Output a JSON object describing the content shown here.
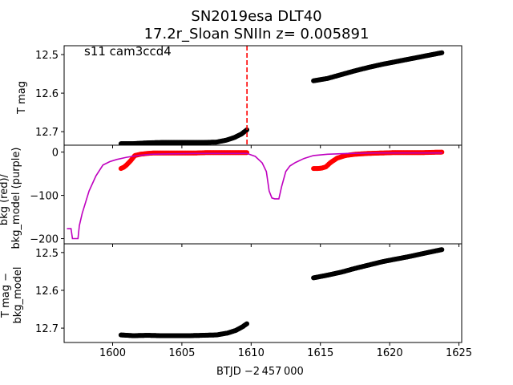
{
  "figure": {
    "title_line1": "SN2019esa  DLT40",
    "title_line2": "17.2r_Sloan SNIIn z= 0.005891",
    "annotation": "s11 cam3ccd4",
    "xlabel": "BTJD −2 457 000"
  },
  "colors": {
    "data": "#000000",
    "bkg": "#ff0000",
    "model": "#bf00bf",
    "marker_line": "#ff0000"
  },
  "chart_data": [
    {
      "type": "scatter",
      "name": "top-panel",
      "ylabel": "T mag",
      "xlim": [
        1596.5,
        1625.2
      ],
      "ylim": [
        12.735,
        12.477
      ],
      "y_inverted": true,
      "xticks": [
        1600,
        1605,
        1610,
        1615,
        1620,
        1625
      ],
      "yticks": [
        12.5,
        12.6,
        12.7
      ],
      "ytick_labels": [
        "12.5",
        "12.6",
        "12.7"
      ],
      "vline_x": 1609.7,
      "series": [
        {
          "color": "black",
          "segments": [
            {
              "x": [
                1600.6,
                1601.5,
                1602.5,
                1603.5,
                1604.5,
                1605.5,
                1606.5,
                1607.5,
                1608.2,
                1608.8,
                1609.3,
                1609.7
              ],
              "y": [
                12.731,
                12.731,
                12.729,
                12.728,
                12.728,
                12.728,
                12.728,
                12.727,
                12.722,
                12.715,
                12.706,
                12.695
              ]
            },
            {
              "x": [
                1614.5,
                1615.5,
                1616.5,
                1617.5,
                1618.5,
                1619.5,
                1620.5,
                1621.5,
                1622.5,
                1623.8
              ],
              "y": [
                12.568,
                12.562,
                12.552,
                12.542,
                12.533,
                12.525,
                12.518,
                12.511,
                12.504,
                12.495
              ]
            }
          ]
        }
      ]
    },
    {
      "type": "line",
      "name": "middle-panel",
      "ylabel": "bkg (red)/ \nbkg_model (purple)",
      "xlim": [
        1596.5,
        1625.2
      ],
      "ylim": [
        -212,
        16
      ],
      "xticks": [
        1600,
        1605,
        1610,
        1615,
        1620,
        1625
      ],
      "yticks": [
        0,
        -100,
        -200
      ],
      "ytick_labels": [
        "0",
        "−100",
        "−200"
      ],
      "series": [
        {
          "name": "bkg",
          "color": "red",
          "segments": [
            {
              "x": [
                1600.6,
                1600.8,
                1601.0,
                1601.3,
                1601.6,
                1602.0,
                1602.5,
                1603.0,
                1604.0,
                1605.0,
                1606.0,
                1607.0,
                1608.0,
                1609.0,
                1609.7
              ],
              "y": [
                -38,
                -35,
                -30,
                -20,
                -8,
                -5,
                -3,
                -2,
                -2,
                -2,
                -2,
                -1,
                -1,
                -1,
                -1
              ]
            },
            {
              "x": [
                1614.5,
                1614.8,
                1615.1,
                1615.4,
                1615.7,
                1616.2,
                1616.8,
                1617.5,
                1618.5,
                1619.5,
                1620.5,
                1621.5,
                1622.5,
                1623.8
              ],
              "y": [
                -38,
                -38,
                -37,
                -34,
                -25,
                -14,
                -8,
                -5,
                -3,
                -2,
                -1,
                -1,
                -1,
                0
              ]
            }
          ]
        },
        {
          "name": "bkg_model",
          "color": "purple",
          "segments": [
            {
              "x": [
                1596.7,
                1597.0,
                1597.1,
                1597.5,
                1597.6,
                1597.8,
                1598.3,
                1598.8,
                1599.3,
                1599.8,
                1600.3,
                1601.0,
                1601.8,
                1602.8,
                1604.0,
                1606.0,
                1608.0,
                1609.7,
                1610.3,
                1610.8,
                1611.1,
                1611.3,
                1611.5,
                1611.7,
                1612.0,
                1612.2,
                1612.5,
                1612.8,
                1613.2,
                1613.8,
                1614.5,
                1615.5,
                1617.0,
                1619.0,
                1621.0,
                1623.8
              ],
              "y": [
                -177,
                -177,
                -200,
                -200,
                -170,
                -142,
                -90,
                -55,
                -30,
                -22,
                -17,
                -12,
                -8,
                -5,
                -4,
                -3,
                -3,
                -3,
                -10,
                -25,
                -45,
                -90,
                -106,
                -108,
                -108,
                -80,
                -45,
                -32,
                -24,
                -15,
                -8,
                -5,
                -3,
                -2,
                -2,
                -2
              ]
            }
          ]
        }
      ]
    },
    {
      "type": "scatter",
      "name": "bottom-panel",
      "ylabel": "T mag −\nbkg_model",
      "xlim": [
        1596.5,
        1625.2
      ],
      "ylim": [
        12.738,
        12.477
      ],
      "y_inverted": true,
      "xticks": [
        1600,
        1605,
        1610,
        1615,
        1620,
        1625
      ],
      "xtick_labels": [
        "1600",
        "1605",
        "1610",
        "1615",
        "1620",
        "1625"
      ],
      "yticks": [
        12.5,
        12.6,
        12.7
      ],
      "ytick_labels": [
        "12.5",
        "12.6",
        "12.7"
      ],
      "series": [
        {
          "color": "black",
          "segments": [
            {
              "x": [
                1600.6,
                1601.5,
                1602.5,
                1603.5,
                1604.5,
                1605.5,
                1606.5,
                1607.5,
                1608.3,
                1608.9,
                1609.4,
                1609.7
              ],
              "y": [
                12.718,
                12.72,
                12.719,
                12.72,
                12.72,
                12.72,
                12.719,
                12.718,
                12.713,
                12.706,
                12.696,
                12.688
              ]
            },
            {
              "x": [
                1614.5,
                1615.5,
                1616.5,
                1617.5,
                1618.5,
                1619.5,
                1620.5,
                1621.5,
                1622.5,
                1623.8
              ],
              "y": [
                12.567,
                12.56,
                12.552,
                12.542,
                12.533,
                12.524,
                12.517,
                12.51,
                12.502,
                12.492
              ]
            }
          ]
        }
      ]
    }
  ]
}
